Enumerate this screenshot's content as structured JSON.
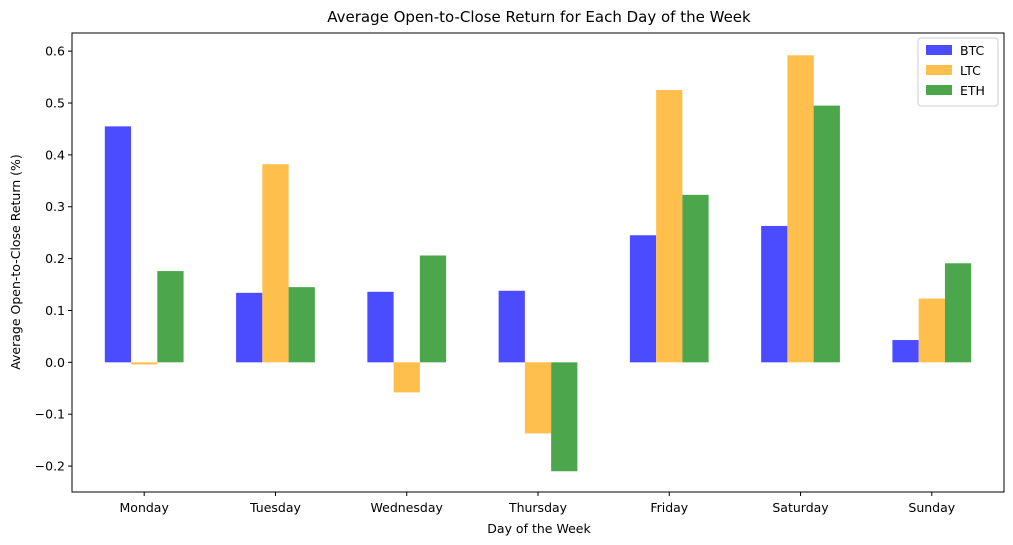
{
  "chart_data": {
    "type": "bar",
    "title": "Average Open-to-Close Return for Each Day of the Week",
    "xlabel": "Day of the Week",
    "ylabel": "Average Open-to-Close Return (%)",
    "categories": [
      "Monday",
      "Tuesday",
      "Wednesday",
      "Thursday",
      "Friday",
      "Saturday",
      "Sunday"
    ],
    "ylim": [
      -0.25,
      0.635
    ],
    "yticks": [
      -0.2,
      -0.1,
      0.0,
      0.1,
      0.2,
      0.3,
      0.4,
      0.5,
      0.6
    ],
    "ytick_labels": [
      "−0.2",
      "−0.1",
      "0.0",
      "0.1",
      "0.2",
      "0.3",
      "0.4",
      "0.5",
      "0.6"
    ],
    "grid": false,
    "legend_position": "top-right",
    "series": [
      {
        "name": "BTC",
        "color": "#4b4bff",
        "values": [
          0.455,
          0.134,
          0.136,
          0.138,
          0.245,
          0.263,
          0.043
        ]
      },
      {
        "name": "LTC",
        "color": "#ffbf4d",
        "values": [
          -0.004,
          0.382,
          -0.058,
          -0.137,
          0.525,
          0.592,
          0.123
        ]
      },
      {
        "name": "ETH",
        "color": "#4ca64c",
        "values": [
          0.176,
          0.145,
          0.206,
          -0.21,
          0.323,
          0.495,
          0.191
        ]
      }
    ]
  }
}
